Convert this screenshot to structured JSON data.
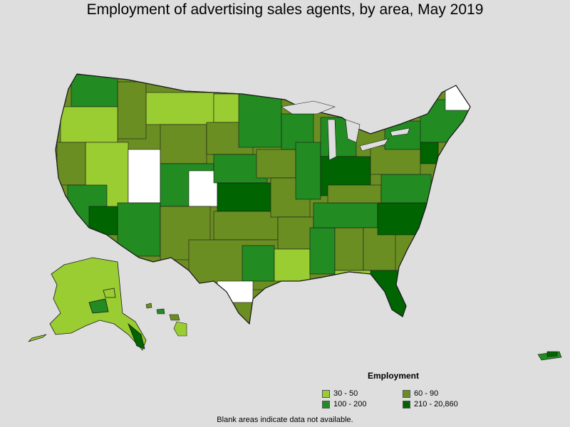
{
  "title": "Employment of advertising sales agents, by area, May 2019",
  "legend": {
    "title": "Employment",
    "items": [
      {
        "label": "30 - 50",
        "color": "#9acd32"
      },
      {
        "label": "60 - 90",
        "color": "#6b8e23"
      },
      {
        "label": "100 - 200",
        "color": "#228b22"
      },
      {
        "label": "210 - 20,860",
        "color": "#006400"
      }
    ]
  },
  "note": "Blank areas indicate data not available.",
  "colors": {
    "background": "#dedede",
    "border": "#1a1a1a",
    "no_data": "#ffffff"
  }
}
